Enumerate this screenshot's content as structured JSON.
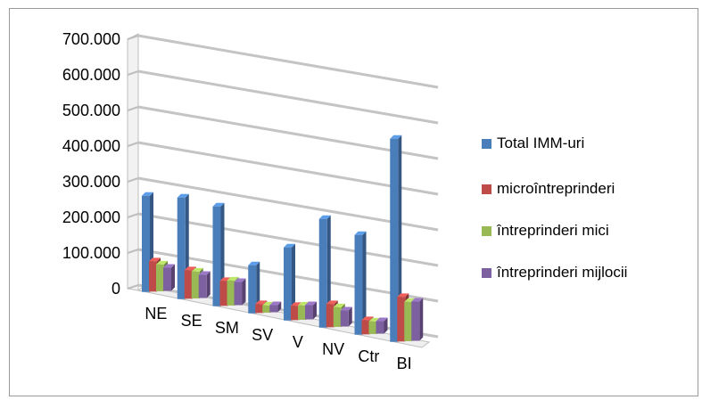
{
  "chart_data": {
    "type": "bar",
    "style": "3d-clustered-column",
    "title": "",
    "xlabel": "",
    "ylabel": "",
    "ylim": [
      0,
      700000
    ],
    "y_ticks": [
      "700.000",
      "600.000",
      "500.000",
      "400.000",
      "300.000",
      "200.000",
      "100.000",
      "0"
    ],
    "grid": true,
    "legend_position": "right",
    "categories": [
      "NE",
      "SE",
      "SM",
      "SV",
      "V",
      "NV",
      "Ctr",
      "BI"
    ],
    "series": [
      {
        "name": "Total IMM-uri",
        "color": "#4a7ebb",
        "values": [
          270000,
          285000,
          280000,
          135000,
          205000,
          305000,
          280000,
          570000
        ]
      },
      {
        "name": "microîntreprinderi",
        "color": "#be4b48",
        "values": [
          85000,
          80000,
          70000,
          25000,
          40000,
          65000,
          40000,
          125000
        ]
      },
      {
        "name": "întreprinderi mici",
        "color": "#98b954",
        "values": [
          75000,
          75000,
          70000,
          20000,
          40000,
          55000,
          35000,
          110000
        ]
      },
      {
        "name": "întreprinderi mijlocii",
        "color": "#7d60a0",
        "values": [
          65000,
          65000,
          65000,
          20000,
          40000,
          45000,
          35000,
          110000
        ]
      }
    ]
  }
}
